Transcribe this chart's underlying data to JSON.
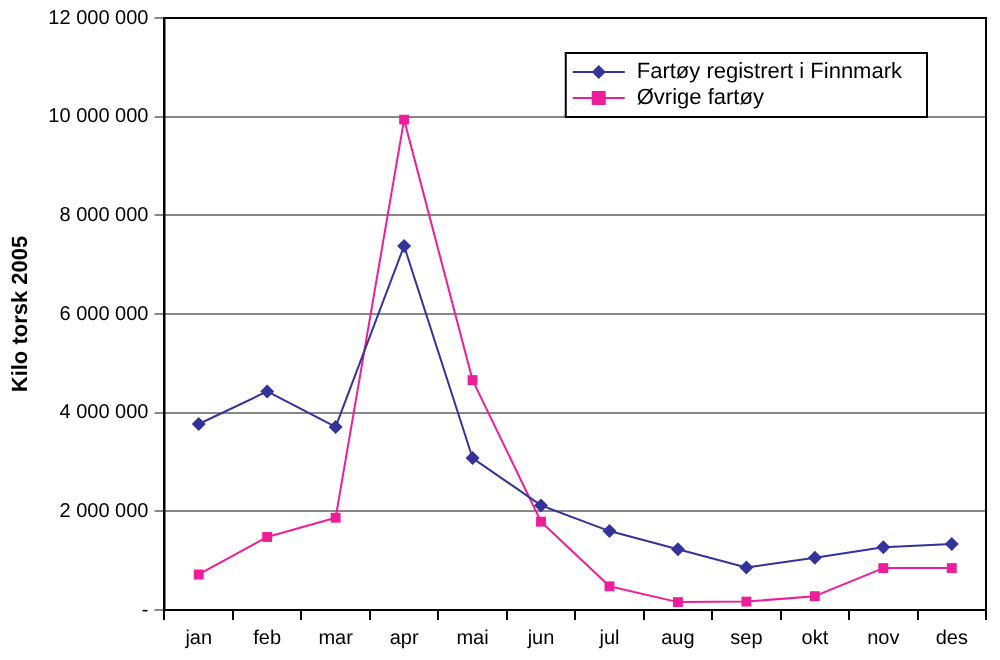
{
  "chart_data": {
    "type": "line",
    "ylabel": "Kilo torsk 2005",
    "categories": [
      "jan",
      "feb",
      "mar",
      "apr",
      "mai",
      "jun",
      "jul",
      "aug",
      "sep",
      "okt",
      "nov",
      "des"
    ],
    "series": [
      {
        "name": "Fartøy registrert i Finnmark",
        "color": "#333399",
        "marker": "diamond",
        "values": [
          3770000,
          4430000,
          3710000,
          7380000,
          3080000,
          2120000,
          1600000,
          1230000,
          860000,
          1060000,
          1270000,
          1340000
        ]
      },
      {
        "name": "Øvrige fartøy",
        "color": "#ee1e98",
        "marker": "square",
        "values": [
          720000,
          1480000,
          1870000,
          9940000,
          4660000,
          1790000,
          480000,
          160000,
          170000,
          280000,
          850000,
          850000
        ]
      }
    ],
    "ylim": [
      0,
      12000000
    ],
    "yticks": [
      {
        "value": 0,
        "label": "-"
      },
      {
        "value": 2000000,
        "label": "2 000 000"
      },
      {
        "value": 4000000,
        "label": "4 000 000"
      },
      {
        "value": 6000000,
        "label": "6 000 000"
      },
      {
        "value": 8000000,
        "label": "8 000 000"
      },
      {
        "value": 10000000,
        "label": "10 000 000"
      },
      {
        "value": 12000000,
        "label": "12 000 000"
      }
    ],
    "grid": "y",
    "legend": "top right",
    "line_style": "solid"
  }
}
